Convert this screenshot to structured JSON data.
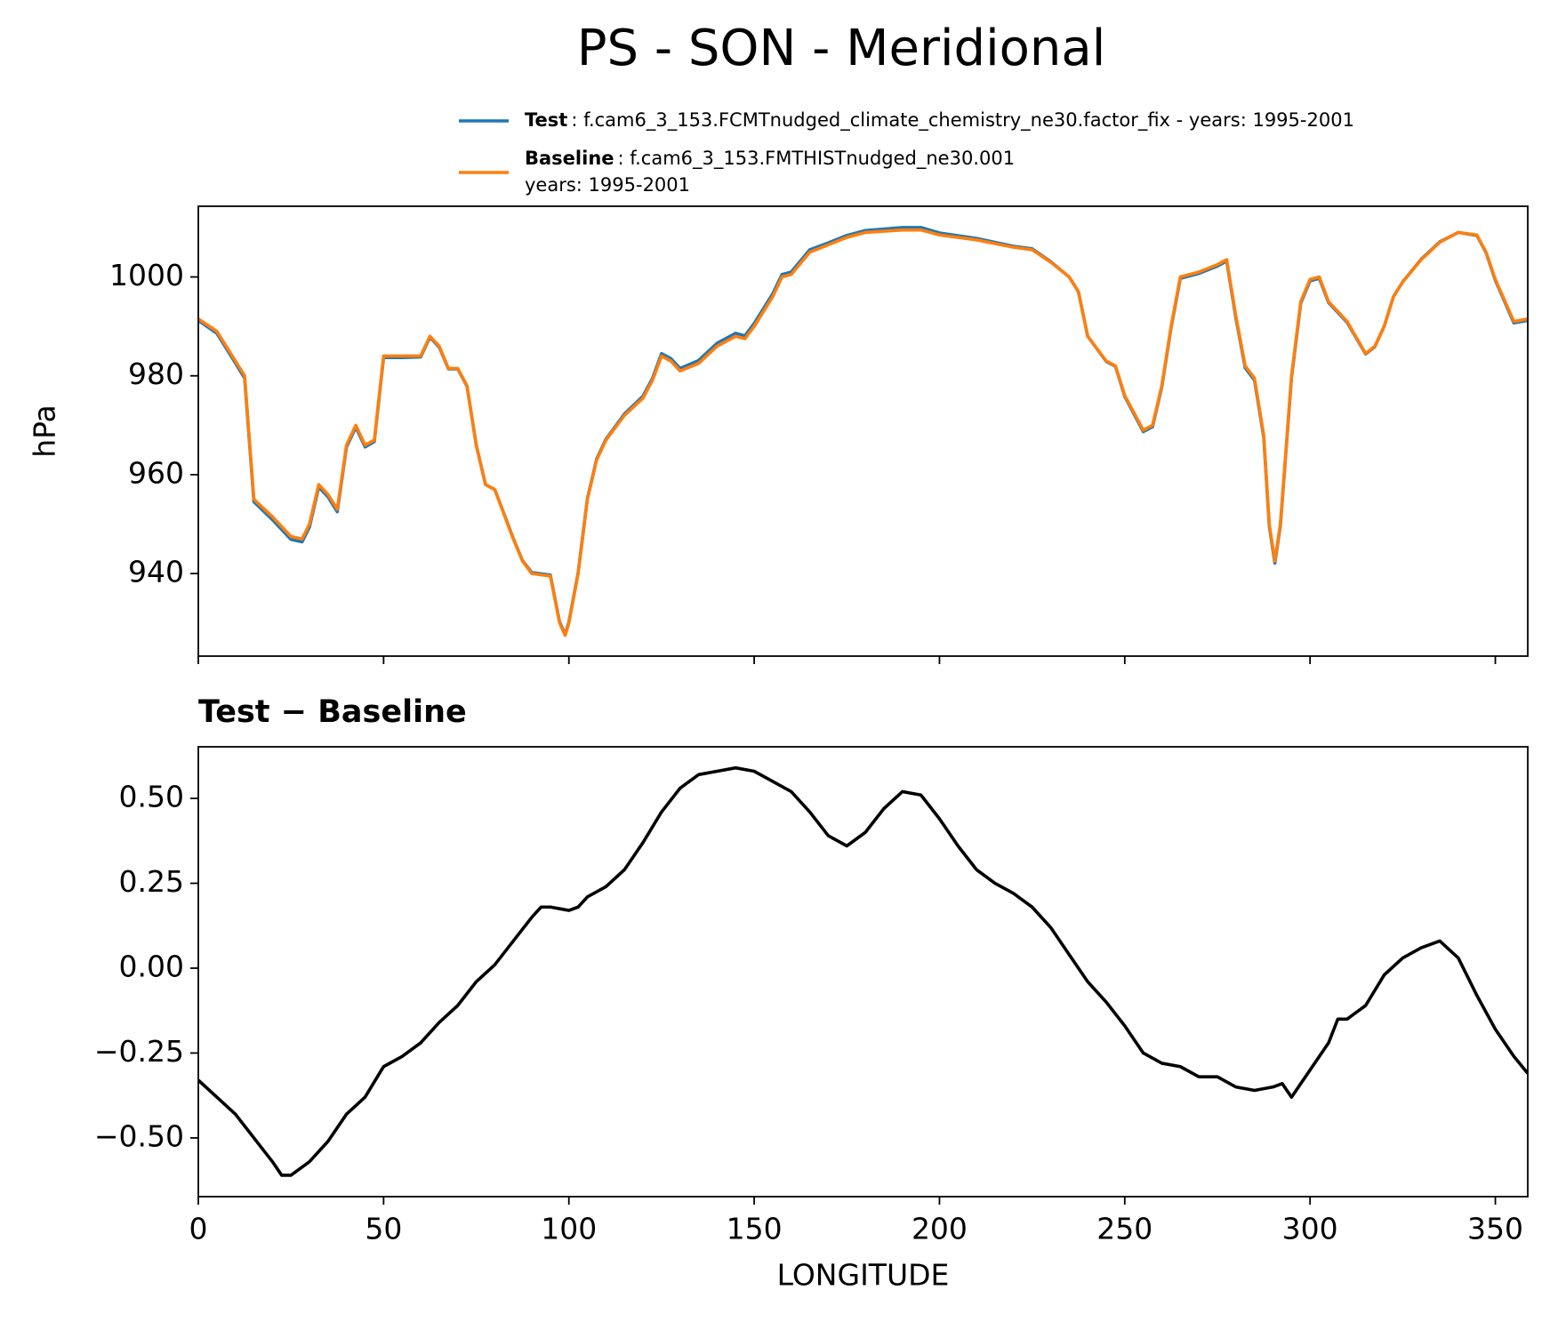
{
  "title": "PS - SON - Meridional",
  "chart_data": [
    {
      "type": "line",
      "ylabel": "hPa",
      "xlim": [
        0,
        358.75
      ],
      "xticks": [
        0,
        50,
        100,
        150,
        200,
        250,
        300,
        350
      ],
      "xtick_labels": false,
      "ylim": [
        923.3,
        1014.3
      ],
      "yticks": [
        940,
        960,
        980,
        1000
      ],
      "x": [
        0,
        5,
        10,
        12.5,
        15,
        20,
        25,
        28,
        30,
        32.5,
        35,
        37.5,
        40,
        42.5,
        45,
        47.5,
        50,
        55,
        60,
        62.5,
        65,
        67.5,
        70,
        72.5,
        75,
        77.5,
        80,
        82.5,
        85,
        87.5,
        90,
        95,
        97.5,
        99,
        100,
        102.5,
        105,
        107.5,
        110,
        115,
        120,
        122.5,
        125,
        127.5,
        130,
        135,
        140,
        145,
        147.5,
        150,
        155,
        157.5,
        160,
        165,
        170,
        175,
        180,
        190,
        195,
        200,
        210,
        220,
        225,
        230,
        235,
        237.5,
        240,
        245,
        247.5,
        250,
        255,
        257.5,
        260,
        262.5,
        265,
        267.5,
        270,
        275,
        277.5,
        280,
        282.5,
        285,
        287.5,
        289,
        290.5,
        292,
        295,
        297.5,
        300,
        302.5,
        305,
        310,
        315,
        317.5,
        320,
        322.5,
        325,
        330,
        335,
        340,
        345,
        347.5,
        350,
        355,
        358.75
      ],
      "series": [
        {
          "name": "Test",
          "legend_text": [
            ": f.cam6_3_153.FCMTnudged_climate_chemistry_ne30.factor_fix - years: 1995-2001"
          ],
          "color": "#1f77b4",
          "values": [
            991.2,
            988.6,
            982.6,
            979.5,
            954.5,
            950.9,
            946.9,
            946.4,
            949.4,
            957.5,
            955.5,
            952.5,
            965.6,
            969.6,
            965.6,
            966.7,
            983.7,
            983.7,
            983.8,
            987.8,
            985.8,
            981.4,
            981.4,
            977.9,
            966,
            958,
            957,
            952.1,
            947.1,
            942.6,
            940.2,
            939.7,
            930.2,
            927.7,
            930.2,
            940.2,
            955.2,
            963.2,
            967.2,
            972.3,
            975.9,
            979.4,
            984.5,
            983.5,
            981.5,
            983.1,
            986.6,
            988.6,
            988.1,
            990.6,
            996.6,
            1000.5,
            1001,
            1005.5,
            1006.9,
            1008.4,
            1009.4,
            1010,
            1010,
            1008.9,
            1007.8,
            1006.2,
            1005.7,
            1003.1,
            1000,
            997,
            988,
            982.9,
            981.9,
            975.8,
            968.7,
            969.7,
            977.7,
            989.7,
            999.7,
            1000.2,
            1000.7,
            1002.2,
            1003.2,
            991.6,
            981.6,
            979.1,
            967.6,
            949.6,
            942.1,
            949.7,
            979.6,
            994.7,
            999.2,
            999.7,
            994.8,
            990.8,
            984.4,
            985.9,
            990,
            996,
            999,
            1003.6,
            1007.1,
            1009,
            1008.4,
            1004.9,
            999.3,
            990.7,
            991.2
          ]
        },
        {
          "name": "Baseline",
          "legend_text": [
            ": f.cam6_3_153.FMTHISTnudged_ne30.001",
            "years: 1995-2001"
          ],
          "color": "#ff7f0e",
          "values": [
            991.5,
            989,
            983,
            980,
            955,
            951.5,
            947.5,
            947,
            950,
            958,
            956,
            953,
            966,
            970,
            966,
            967,
            984,
            984,
            984,
            988,
            986,
            981.5,
            981.5,
            978,
            966,
            958,
            957,
            952,
            947,
            942.5,
            940,
            939.5,
            930,
            927.5,
            930,
            940,
            955,
            963,
            967,
            972,
            975.5,
            979,
            984,
            983,
            981,
            982.5,
            986,
            988,
            987.5,
            990,
            996,
            1000,
            1000.5,
            1005,
            1006.5,
            1008,
            1009,
            1009.5,
            1009.5,
            1008.5,
            1007.5,
            1006,
            1005.5,
            1003,
            1000,
            997,
            988,
            983,
            982,
            976,
            969,
            970,
            978,
            990,
            1000,
            1000.5,
            1001,
            1002.5,
            1003.5,
            992,
            982,
            979.5,
            968,
            950,
            942.5,
            950,
            980,
            995,
            999.5,
            1000,
            995,
            991,
            984.5,
            986,
            990,
            996,
            999,
            1003.5,
            1007,
            1009,
            1008.5,
            1005,
            999.5,
            991,
            991.5
          ]
        }
      ]
    },
    {
      "type": "line",
      "title": "Test − Baseline",
      "xlabel": "LONGITUDE",
      "xlim": [
        0,
        358.75
      ],
      "xticks": [
        0,
        50,
        100,
        150,
        200,
        250,
        300,
        350
      ],
      "ylim": [
        -0.673,
        0.652
      ],
      "yticks": [
        {
          "value": 0.5,
          "label": "0.50"
        },
        {
          "value": 0.25,
          "label": "0.25"
        },
        {
          "value": 0,
          "label": "0.00"
        },
        {
          "value": -0.25,
          "label": "−0.25"
        },
        {
          "value": -0.5,
          "label": "−0.50"
        }
      ],
      "x": [
        0,
        5,
        10,
        15,
        20,
        22.5,
        25,
        30,
        35,
        40,
        45,
        50,
        55,
        60,
        65,
        70,
        75,
        80,
        85,
        90,
        92.5,
        95,
        100,
        102.5,
        105,
        110,
        115,
        120,
        125,
        130,
        135,
        140,
        145,
        150,
        155,
        160,
        165,
        170,
        175,
        180,
        185,
        190,
        195,
        200,
        205,
        210,
        215,
        220,
        225,
        230,
        235,
        240,
        245,
        250,
        255,
        260,
        265,
        270,
        275,
        280,
        285,
        290,
        292.5,
        295,
        300,
        305,
        307.5,
        310,
        315,
        320,
        325,
        330,
        335,
        340,
        345,
        350,
        355,
        358.75
      ],
      "series": [
        {
          "color": "#000000",
          "values": [
            -0.33,
            -0.38,
            -0.43,
            -0.5,
            -0.57,
            -0.61,
            -0.61,
            -0.57,
            -0.51,
            -0.43,
            -0.38,
            -0.29,
            -0.26,
            -0.22,
            -0.16,
            -0.11,
            -0.04,
            0.01,
            0.08,
            0.15,
            0.18,
            0.18,
            0.17,
            0.18,
            0.21,
            0.24,
            0.29,
            0.37,
            0.46,
            0.53,
            0.57,
            0.58,
            0.59,
            0.58,
            0.55,
            0.52,
            0.46,
            0.39,
            0.36,
            0.4,
            0.47,
            0.52,
            0.51,
            0.44,
            0.36,
            0.29,
            0.25,
            0.22,
            0.18,
            0.12,
            0.04,
            -0.04,
            -0.1,
            -0.17,
            -0.25,
            -0.28,
            -0.29,
            -0.32,
            -0.32,
            -0.35,
            -0.36,
            -0.35,
            -0.34,
            -0.38,
            -0.3,
            -0.22,
            -0.15,
            -0.15,
            -0.11,
            -0.02,
            0.03,
            0.06,
            0.08,
            0.03,
            -0.08,
            -0.18,
            -0.26,
            -0.31
          ]
        }
      ]
    }
  ]
}
